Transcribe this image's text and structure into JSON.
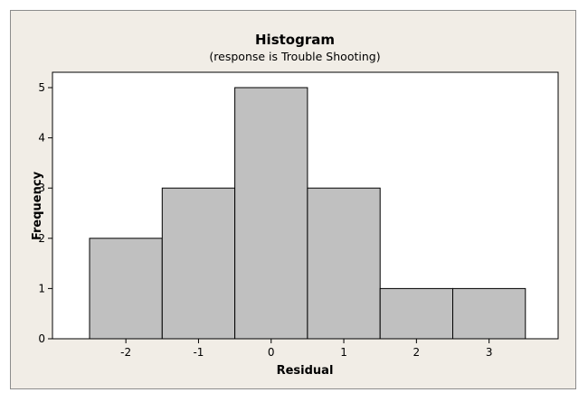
{
  "chart_data": {
    "type": "bar",
    "title": "Histogram",
    "subtitle": "(response is Trouble Shooting)",
    "xlabel": "Residual",
    "ylabel": "Frequency",
    "categories": [
      "-2",
      "-1",
      "0",
      "1",
      "2",
      "3"
    ],
    "values": [
      2,
      3,
      5,
      3,
      1,
      1
    ],
    "ylim": [
      0,
      5.4
    ],
    "yticks": [
      0,
      1,
      2,
      3,
      4,
      5
    ],
    "grid": false,
    "colors": {
      "frame_background": "#f1ede6",
      "plot_background": "#ffffff",
      "bar_fill": "#c0c0c0",
      "bar_stroke": "#000000"
    }
  }
}
